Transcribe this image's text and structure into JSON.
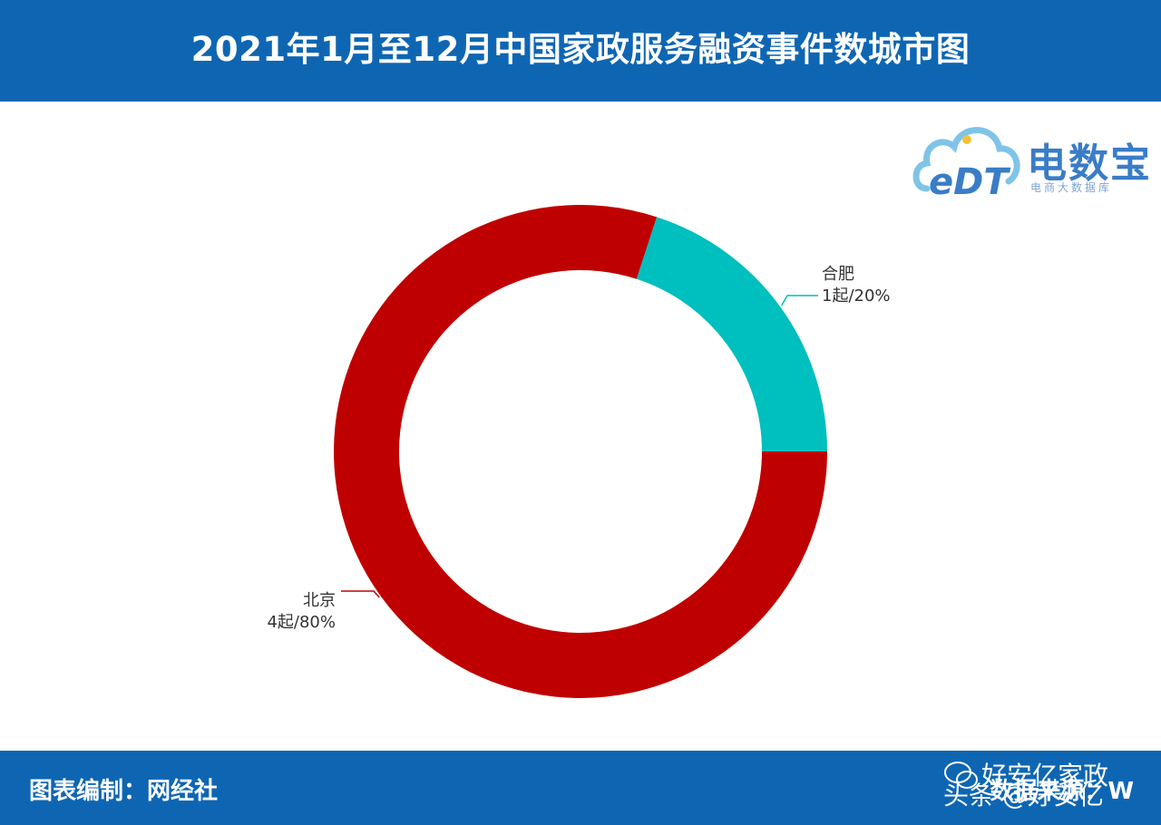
{
  "header": {
    "title": "2021年1月至12月中国家政服务融资事件数城市图"
  },
  "logo": {
    "mark": "eDT",
    "name": "电数宝",
    "subtitle": "电商大数据库"
  },
  "footer": {
    "left": "图表编制：网经社",
    "right": "数据来源：W"
  },
  "watermark": {
    "top": "好安亿家政",
    "bottom": "头条 @好安亿"
  },
  "colors": {
    "header_bg": "#0e66b3",
    "beijing": "#bf0000",
    "hefei": "#00bfbf"
  },
  "chart_data": {
    "type": "pie",
    "donut": true,
    "title": "",
    "slices": [
      {
        "name": "合肥",
        "value": 1,
        "percent": 20,
        "label": "1起/20%",
        "color": "#00bfbf"
      },
      {
        "name": "北京",
        "value": 4,
        "percent": 80,
        "label": "4起/80%",
        "color": "#bf0000"
      }
    ]
  }
}
